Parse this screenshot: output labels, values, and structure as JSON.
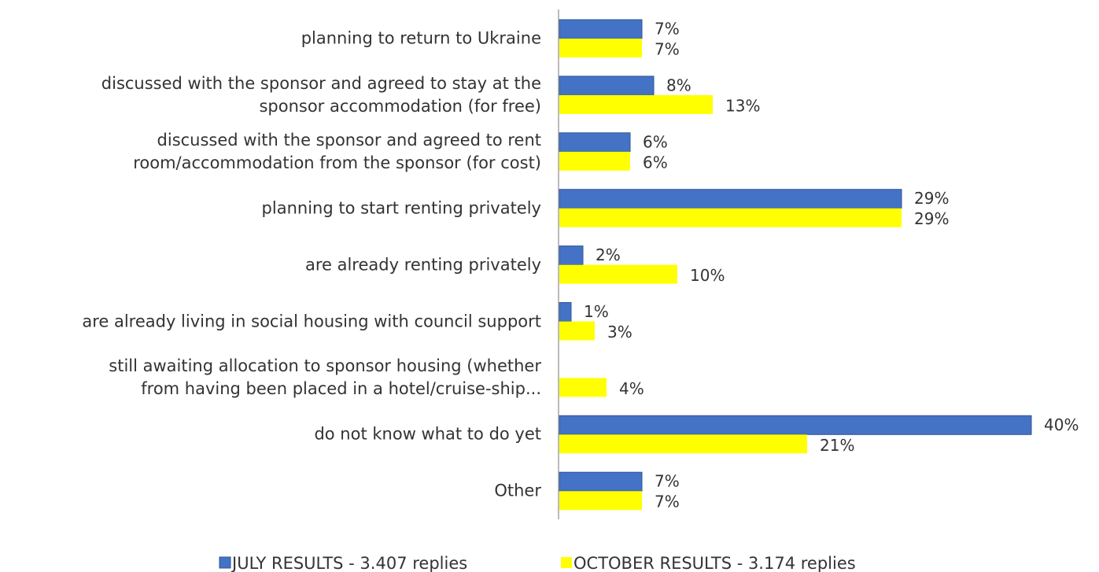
{
  "chart_data": {
    "type": "bar",
    "orientation": "horizontal",
    "categories": [
      "planning to return to Ukraine",
      "discussed with the sponsor and agreed to stay at the\nsponsor accommodation (for free)",
      "discussed with the sponsor and agreed to rent\nroom/accommodation from the sponsor (for cost)",
      "planning to start renting privately",
      "are already renting privately",
      "are already living in social housing with council support",
      "still awaiting allocation to sponsor housing (whether\nfrom having been placed in a hotel/cruise-ship...",
      "do not know what to do yet",
      "Other"
    ],
    "series": [
      {
        "name": "JULY RESULTS - 3.407 replies",
        "color": "#4472c4",
        "values": [
          7,
          8,
          6,
          29,
          2,
          1,
          null,
          40,
          7
        ],
        "value_labels": [
          "7%",
          "8%",
          "6%",
          "29%",
          "2%",
          "1%",
          null,
          "40%",
          "7%"
        ]
      },
      {
        "name": "OCTOBER RESULTS - 3.174 replies",
        "color": "#ffff00",
        "values": [
          7,
          13,
          6,
          29,
          10,
          3,
          4,
          21,
          7
        ],
        "value_labels": [
          "7%",
          "13%",
          "6%",
          "29%",
          "10%",
          "3%",
          "4%",
          "21%",
          "7%"
        ]
      }
    ],
    "xlim": [
      0,
      40
    ],
    "legend": "bottom"
  }
}
